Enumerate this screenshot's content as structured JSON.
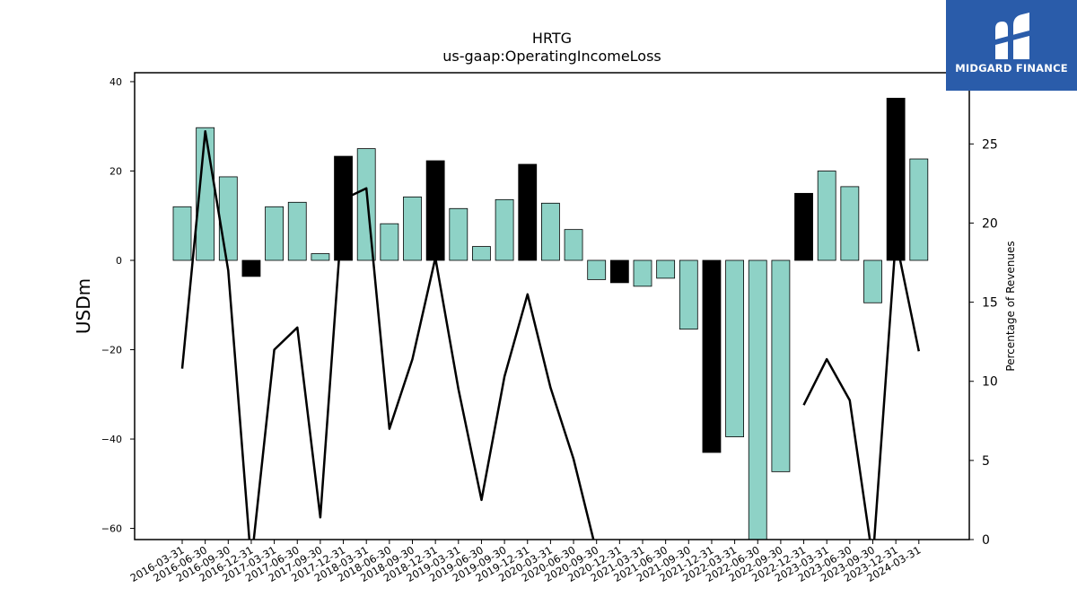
{
  "logo": {
    "text": "MIDGARD FINANCE",
    "icon": "midgard-logo-icon",
    "background": "#2a5caa"
  },
  "chart_data": {
    "type": "bar",
    "title": "HRTG",
    "subtitle": "us-gaap:OperatingIncomeLoss",
    "ylabel": "USDm",
    "y2label": "Percentage of Revenues",
    "ylim": [
      -62.5,
      42
    ],
    "y2lim": [
      0,
      29.5
    ],
    "yticks": [
      40,
      20,
      0,
      -20,
      -40,
      -60
    ],
    "y2ticks": [
      0,
      5,
      10,
      15,
      20,
      25
    ],
    "grid": false,
    "colors": {
      "bar": "#8ed2c6",
      "highlight": "#000000",
      "line": "#000000",
      "edge": "#000000"
    },
    "categories": [
      "2016-03-31",
      "2016-06-30",
      "2016-09-30",
      "2016-12-31",
      "2017-03-31",
      "2017-06-30",
      "2017-09-30",
      "2017-12-31",
      "2018-03-31",
      "2018-06-30",
      "2018-09-30",
      "2018-12-31",
      "2019-03-31",
      "2019-06-30",
      "2019-09-30",
      "2019-12-31",
      "2020-03-31",
      "2020-06-30",
      "2020-09-30",
      "2020-12-31",
      "2021-03-31",
      "2021-06-30",
      "2021-09-30",
      "2021-12-31",
      "2022-03-31",
      "2022-06-30",
      "2022-09-30",
      "2022-12-31",
      "2023-03-31",
      "2023-06-30",
      "2023-09-30",
      "2023-12-31",
      "2024-03-31"
    ],
    "series": [
      {
        "values": [
          12,
          29.7,
          18.7,
          -3.6,
          12,
          13,
          1.5,
          23.3,
          25,
          8.2,
          14.2,
          22.3,
          11.6,
          3.1,
          13.6,
          21.5,
          12.8,
          6.9,
          -4.3,
          -5,
          -5.8,
          -4,
          -15.4,
          -43,
          -39.5,
          -70,
          -47.3,
          15,
          20,
          16.5,
          -9.5,
          36.3,
          22.7
        ],
        "highlight": [
          false,
          false,
          false,
          true,
          false,
          false,
          false,
          true,
          false,
          false,
          false,
          true,
          false,
          false,
          false,
          true,
          false,
          false,
          false,
          true,
          false,
          false,
          false,
          true,
          false,
          false,
          false,
          true,
          false,
          false,
          false,
          true,
          false
        ]
      },
      {
        "values": [
          10.8,
          25.8,
          17,
          -1.5,
          12,
          13.4,
          1.4,
          21.5,
          22.2,
          7,
          11.4,
          17.8,
          9.5,
          2.5,
          10.3,
          15.5,
          9.6,
          5.1,
          -0.8,
          null,
          null,
          null,
          null,
          null,
          null,
          null,
          null,
          8.5,
          11.4,
          8.8,
          -1.3,
          19,
          11.9
        ]
      }
    ]
  }
}
